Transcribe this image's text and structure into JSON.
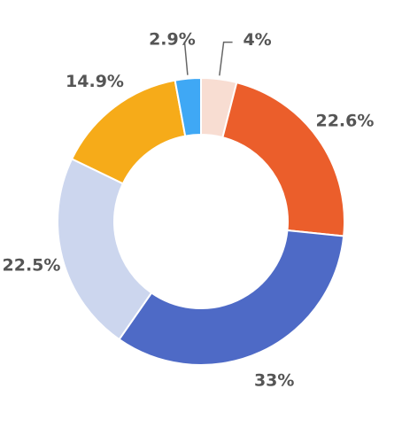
{
  "chart_data": {
    "type": "pie",
    "donut": true,
    "title": "",
    "slices": [
      {
        "label": "4%",
        "value": 4.0,
        "color": "#F8DDD2"
      },
      {
        "label": "22.6%",
        "value": 22.6,
        "color": "#EB5E2B"
      },
      {
        "label": "33%",
        "value": 33.0,
        "color": "#4E6AC6"
      },
      {
        "label": "22.5%",
        "value": 22.5,
        "color": "#CCD6EE"
      },
      {
        "label": "14.9%",
        "value": 14.9,
        "color": "#F6AB19"
      },
      {
        "label": "2.9%",
        "value": 2.9,
        "color": "#3FA8F5"
      }
    ],
    "legend": "none",
    "label_color": "#555555"
  }
}
